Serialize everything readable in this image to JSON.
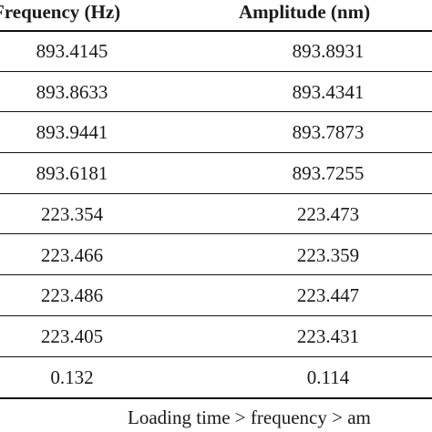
{
  "table": {
    "headers": {
      "frequency": "Frequency (Hz)",
      "amplitude": "Amplitude (nm)"
    },
    "rows": [
      {
        "frequency": "893.4145",
        "amplitude": "893.8931"
      },
      {
        "frequency": "893.8633",
        "amplitude": "893.4341"
      },
      {
        "frequency": "893.9441",
        "amplitude": "893.7873"
      },
      {
        "frequency": "893.6181",
        "amplitude": "893.7255"
      },
      {
        "frequency": "223.354",
        "amplitude": "223.473"
      },
      {
        "frequency": "223.466",
        "amplitude": "223.359"
      },
      {
        "frequency": "223.486",
        "amplitude": "223.447"
      },
      {
        "frequency": "223.405",
        "amplitude": "223.431"
      },
      {
        "frequency": "0.132",
        "amplitude": "0.114"
      }
    ],
    "footer": "Loading time > frequency > am"
  }
}
